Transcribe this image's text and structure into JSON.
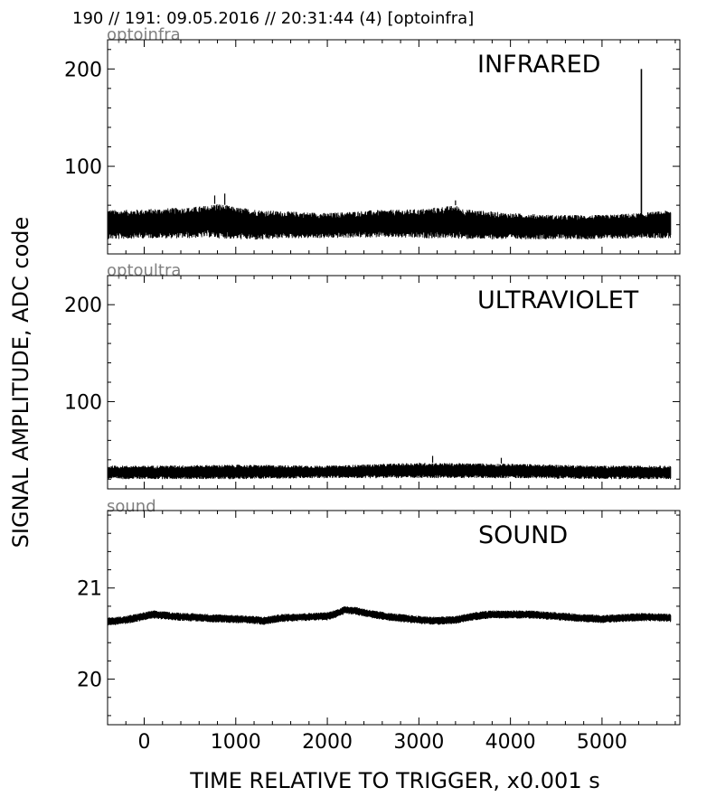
{
  "header": {
    "title": "190 // 191:   09.05.2016 // 20:31:44 (4)  [optoinfra]"
  },
  "chart_data": [
    {
      "type": "line",
      "tag": "optoinfra",
      "title": "INFRARED",
      "xlabel": "TIME RELATIVE TO TRIGGER,   x0.001 s",
      "ylabel": "SIGNAL AMPLITUDE,  ADC code",
      "xlim": [
        -400,
        5850
      ],
      "ylim": [
        10,
        230
      ],
      "yticks": [
        100,
        200
      ],
      "line_color": "#000000",
      "series": [
        {
          "noise_band": {
            "x": [
              -400,
              -300,
              0,
              500,
              700,
              800,
              1000,
              1300,
              1500,
              2000,
              2500,
              3000,
              3400,
              3500,
              4000,
              4500,
              5000,
              5400,
              5750
            ],
            "low": [
              25,
              25,
              26,
              26,
              27,
              26,
              25,
              24,
              26,
              26,
              27,
              26,
              26,
              25,
              25,
              25,
              25,
              26,
              26
            ],
            "high": [
              56,
              55,
              56,
              58,
              60,
              62,
              58,
              55,
              54,
              52,
              55,
              56,
              60,
              56,
              52,
              50,
              50,
              52,
              55
            ]
          },
          "peaks": [
            {
              "x": 770,
              "y": 70
            },
            {
              "x": 880,
              "y": 72
            },
            {
              "x": 3400,
              "y": 65
            }
          ],
          "spike": {
            "x": 5430,
            "y_low": 50,
            "y_high": 200
          }
        }
      ]
    },
    {
      "type": "line",
      "tag": "optoultra",
      "title": "ULTRAVIOLET",
      "xlim": [
        -400,
        5850
      ],
      "ylim": [
        10,
        230
      ],
      "yticks": [
        100,
        200
      ],
      "line_color": "#000000",
      "series": [
        {
          "noise_band": {
            "x": [
              -400,
              0,
              1000,
              2000,
              3000,
              4000,
              5000,
              5750
            ],
            "low": [
              20,
              20,
              20,
              21,
              21,
              21,
              20,
              20
            ],
            "high": [
              34,
              34,
              35,
              34,
              37,
              36,
              34,
              34
            ]
          },
          "peaks": [
            {
              "x": 3150,
              "y": 44
            },
            {
              "x": 3900,
              "y": 42
            }
          ]
        }
      ]
    },
    {
      "type": "line",
      "tag": "sound",
      "title": "SOUND",
      "xlim": [
        -400,
        5850
      ],
      "ylim": [
        19.5,
        21.85
      ],
      "yticks": [
        20,
        21
      ],
      "xticks": [
        0,
        1000,
        2000,
        3000,
        4000,
        5000
      ],
      "line_color": "#000000",
      "series": [
        {
          "center": {
            "x": [
              -400,
              -200,
              0,
              100,
              300,
              700,
              1000,
              1200,
              1300,
              1500,
              1700,
              2000,
              2100,
              2200,
              2300,
              2500,
              2700,
              3000,
              3200,
              3400,
              3600,
              3800,
              4000,
              4200,
              4500,
              4800,
              5000,
              5200,
              5400,
              5600,
              5750
            ],
            "y": [
              20.63,
              20.65,
              20.69,
              20.71,
              20.69,
              20.67,
              20.66,
              20.65,
              20.64,
              20.67,
              20.68,
              20.69,
              20.72,
              20.76,
              20.75,
              20.71,
              20.68,
              20.65,
              20.64,
              20.65,
              20.69,
              20.71,
              20.71,
              20.71,
              20.69,
              20.67,
              20.66,
              20.67,
              20.68,
              20.68,
              20.67
            ]
          },
          "half_width": 0.045
        }
      ]
    }
  ]
}
